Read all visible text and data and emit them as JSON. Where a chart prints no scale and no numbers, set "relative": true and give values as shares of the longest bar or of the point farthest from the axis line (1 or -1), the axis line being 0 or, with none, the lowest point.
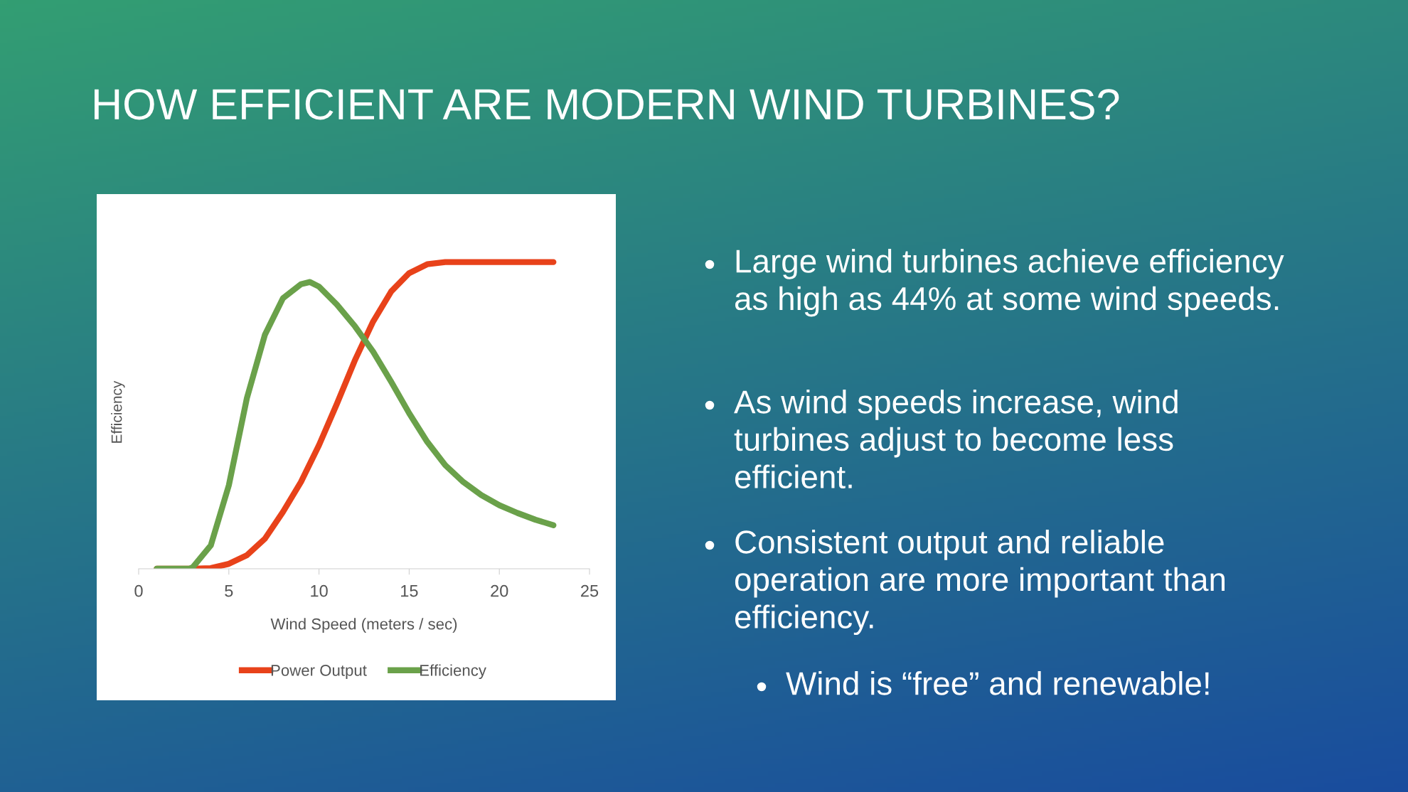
{
  "chart_data": {
    "type": "line",
    "title": "HOW EFFICIENT ARE MODERN WIND TURBINES?",
    "xlabel": "Wind Speed (meters / sec)",
    "ylabel": "Efficiency",
    "relative": true,
    "xlim": [
      0,
      25
    ],
    "xticks": [
      0,
      5,
      10,
      15,
      20,
      25
    ],
    "grid": false,
    "legend": "bottom",
    "marker": "none",
    "line_style": "solid",
    "series": [
      {
        "name": "Power Output",
        "color": "#e8421a",
        "x": [
          1,
          3,
          4,
          5,
          6,
          7,
          8,
          9,
          10,
          11,
          12,
          13,
          14,
          15,
          16,
          17,
          23
        ],
        "values": [
          0,
          0,
          0.002,
          0.016,
          0.044,
          0.098,
          0.185,
          0.283,
          0.403,
          0.539,
          0.681,
          0.806,
          0.904,
          0.964,
          0.993,
          1,
          1
        ]
      },
      {
        "name": "Efficiency",
        "color": "#6aa14a",
        "x": [
          1,
          2.8,
          3,
          4,
          5,
          6,
          7,
          8,
          9,
          9.5,
          10,
          11,
          12,
          13,
          14,
          15,
          16,
          17,
          18,
          19,
          20,
          21,
          22,
          23
        ],
        "values": [
          0,
          0,
          0.005,
          0.076,
          0.272,
          0.556,
          0.763,
          0.882,
          0.928,
          0.935,
          0.92,
          0.861,
          0.79,
          0.708,
          0.61,
          0.507,
          0.414,
          0.338,
          0.283,
          0.24,
          0.207,
          0.182,
          0.16,
          0.142
        ]
      }
    ],
    "annotations": [
      "Large wind turbines achieve efficiency as high as 44% at some wind speeds.",
      "As wind speeds increase, wind turbines adjust to become less efficient.",
      "Consistent output and reliable operation are more important than efficiency.",
      "Wind is “free” and renewable!"
    ]
  }
}
